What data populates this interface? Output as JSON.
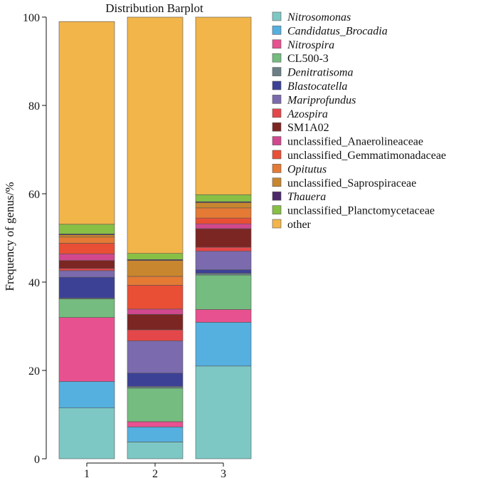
{
  "chart_data": {
    "type": "bar",
    "stacked": true,
    "title": "Distribution Barplot",
    "xlabel": "",
    "ylabel": "Frequency of genus/%",
    "ylim": [
      0,
      100
    ],
    "yticks": [
      0,
      20,
      40,
      60,
      80,
      100
    ],
    "categories": [
      "1",
      "2",
      "3"
    ],
    "grid": false,
    "legend_position": "right",
    "series": [
      {
        "name": "Nitrosomonas",
        "italic": true,
        "color": "#7dc8c4",
        "values": [
          11.5,
          3.8,
          21.0
        ]
      },
      {
        "name": "Candidatus_Brocadia",
        "italic": true,
        "color": "#55b0df",
        "values": [
          6.0,
          3.4,
          9.9
        ]
      },
      {
        "name": "Nitrospira",
        "italic": true,
        "color": "#e8518f",
        "values": [
          14.5,
          1.2,
          2.9
        ]
      },
      {
        "name": "CL500-3",
        "italic": false,
        "color": "#74bc7f",
        "values": [
          4.2,
          7.6,
          7.8
        ]
      },
      {
        "name": "Denitratisoma",
        "italic": true,
        "color": "#6c7f86",
        "values": [
          0.2,
          0.4,
          0.4
        ]
      },
      {
        "name": "Blastocatella",
        "italic": true,
        "color": "#3c4196",
        "values": [
          4.7,
          3.0,
          0.8
        ]
      },
      {
        "name": "Mariprofundus",
        "italic": true,
        "color": "#7b6aad",
        "values": [
          1.5,
          7.3,
          4.2
        ]
      },
      {
        "name": "Azospira",
        "italic": true,
        "color": "#e4474a",
        "values": [
          0.5,
          2.5,
          0.9
        ]
      },
      {
        "name": "SM1A02",
        "italic": false,
        "color": "#7c2623",
        "values": [
          1.8,
          3.5,
          4.2
        ]
      },
      {
        "name": "unclassified_Anaerolineaceae",
        "italic": false,
        "color": "#d1488e",
        "values": [
          1.5,
          1.2,
          1.1
        ]
      },
      {
        "name": "unclassified_Gemmatimonadaceae",
        "italic": false,
        "color": "#e94f35",
        "values": [
          2.4,
          5.4,
          1.3
        ]
      },
      {
        "name": "Opitutus",
        "italic": true,
        "color": "#e47a34",
        "values": [
          1.4,
          2.0,
          2.3
        ]
      },
      {
        "name": "unclassified_Saprospiraceae",
        "italic": false,
        "color": "#c8862f",
        "values": [
          0.5,
          3.6,
          1.2
        ]
      },
      {
        "name": "Thauera",
        "italic": true,
        "color": "#4b2a6a",
        "values": [
          0.2,
          0.2,
          0.2
        ]
      },
      {
        "name": "unclassified_Planctomycetaceae",
        "italic": false,
        "color": "#88bf45",
        "values": [
          2.2,
          1.4,
          1.6
        ]
      },
      {
        "name": "other",
        "italic": false,
        "color": "#f2b54a",
        "values": [
          45.9,
          53.5,
          40.2
        ]
      }
    ]
  }
}
